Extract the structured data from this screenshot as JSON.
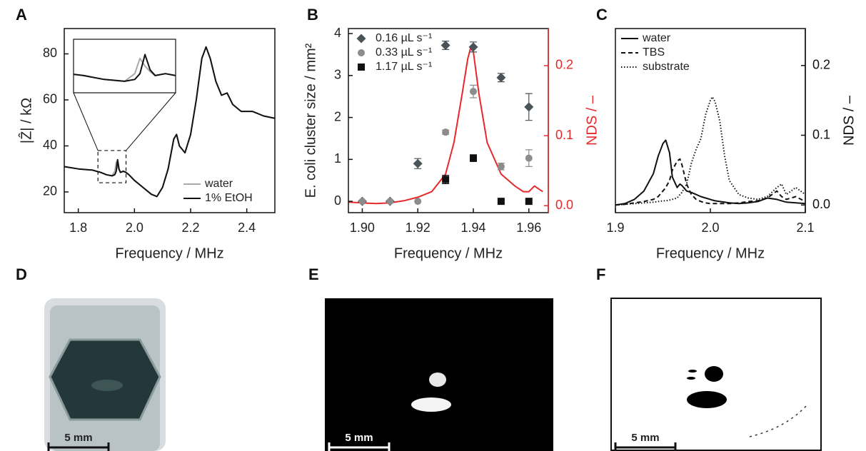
{
  "chart_data": [
    {
      "type": "line",
      "panel": "A",
      "xlabel": "Frequency / MHz",
      "ylabel": "|Ẑ| / kΩ",
      "x": [
        1.75,
        1.8,
        1.85,
        1.88,
        1.9,
        1.92,
        1.93,
        1.935,
        1.94,
        1.945,
        1.95,
        1.96,
        1.97,
        1.98,
        2.0,
        2.03,
        2.06,
        2.08,
        2.1,
        2.12,
        2.14,
        2.15,
        2.16,
        2.18,
        2.2,
        2.22,
        2.24,
        2.255,
        2.27,
        2.29,
        2.31,
        2.33,
        2.35,
        2.38,
        2.42,
        2.46,
        2.5
      ],
      "series": [
        {
          "name": "water",
          "color": "#aaaaaa",
          "values": [
            31,
            30,
            29.5,
            28.5,
            27.5,
            27,
            29,
            33,
            31,
            29.5,
            28.5,
            29,
            28.5,
            27.5,
            25,
            22,
            19,
            18,
            22,
            30,
            43,
            45,
            40,
            37,
            45,
            60,
            78,
            83,
            78,
            68,
            62,
            63,
            58,
            55,
            55,
            53,
            52
          ]
        },
        {
          "name": "1% EtOH",
          "color": "#111111",
          "values": [
            31,
            30,
            29.5,
            28.5,
            27.5,
            27,
            27.5,
            29,
            34,
            30,
            28.5,
            29,
            28.5,
            27.5,
            25,
            22,
            19,
            18,
            22,
            30,
            43,
            45,
            40,
            37,
            45,
            60,
            78,
            83,
            78,
            68,
            62,
            63,
            58,
            55,
            55,
            53,
            52
          ]
        }
      ],
      "xlim": [
        1.75,
        2.5
      ],
      "xticks": [
        1.8,
        {
          "value": 2,
          "label": "2.0"
        },
        2.2,
        2.4
      ],
      "ylim": [
        11,
        91
      ],
      "yticks": [
        20,
        40,
        60,
        80
      ],
      "inset": {
        "xlim": [
          1.87,
          1.97
        ],
        "ylim": [
          24,
          38
        ]
      },
      "legend": "lower right"
    },
    {
      "type": "scatter",
      "panel": "B",
      "xlabel": "Frequency / MHz",
      "ylabel": "E. coli cluster size / mm²",
      "y2label": "NDS / –",
      "y2_color": "#e8282b",
      "series": [
        {
          "axis": "y2",
          "color": "#e8282b",
          "x": [
            1.895,
            1.9,
            1.905,
            1.91,
            1.915,
            1.92,
            1.925,
            1.93,
            1.933,
            1.936,
            1.938,
            1.939,
            1.94,
            1.942,
            1.945,
            1.95,
            1.955,
            1.958,
            1.96,
            1.962,
            1.965
          ],
          "values": [
            0.005,
            0.004,
            0.003,
            0.004,
            0.007,
            0.012,
            0.02,
            0.045,
            0.09,
            0.16,
            0.21,
            0.225,
            0.22,
            0.16,
            0.09,
            0.045,
            0.028,
            0.02,
            0.02,
            0.028,
            0.02
          ]
        },
        {
          "name": "0.16 µL s⁻¹",
          "color": "#4a5358",
          "marker": "diamond",
          "x": [
            1.9,
            1.91,
            1.92,
            1.93,
            1.94,
            1.95,
            1.96
          ],
          "values": [
            0,
            0,
            0.9,
            3.72,
            3.68,
            2.95,
            2.25
          ],
          "errors": [
            null,
            null,
            0.12,
            0.1,
            0.12,
            0.1,
            0.32
          ]
        },
        {
          "name": "0.33 µL s⁻¹",
          "color": "#8c8c8c",
          "marker": "circle",
          "x": [
            1.9,
            1.91,
            1.92,
            1.93,
            1.94,
            1.95,
            1.96
          ],
          "values": [
            0,
            0,
            0,
            1.65,
            2.62,
            0.83,
            1.03
          ],
          "errors": [
            null,
            null,
            null,
            0.05,
            0.15,
            0.08,
            0.2
          ]
        },
        {
          "name": "1.17 µL s⁻¹",
          "color": "#111111",
          "marker": "square",
          "x": [
            1.93,
            1.94,
            1.95,
            1.96
          ],
          "values": [
            0.52,
            1.03,
            0,
            0
          ],
          "errors": [
            0.1,
            0.08,
            null,
            null
          ]
        }
      ],
      "xlim": [
        1.895,
        1.967
      ],
      "xticks": [
        {
          "value": 1.9,
          "label": "1.90"
        },
        1.92,
        1.94,
        1.96
      ],
      "ylim": [
        -0.27,
        4.12
      ],
      "yticks": [
        0,
        1,
        2,
        3,
        4
      ],
      "y2lim": [
        -0.01,
        0.253
      ],
      "y2ticks": [
        {
          "value": 0,
          "label": "0.0"
        },
        0.1,
        0.2
      ],
      "legend": "upper left"
    },
    {
      "type": "line",
      "panel": "C",
      "xlabel": "Frequency / MHz",
      "y2label": "NDS / –",
      "x": [
        1.9,
        1.91,
        1.92,
        1.93,
        1.94,
        1.945,
        1.95,
        1.953,
        1.957,
        1.96,
        1.965,
        1.968,
        1.97,
        1.975,
        1.98,
        1.985,
        1.99,
        1.995,
        2.0,
        2.002,
        2.005,
        2.01,
        2.015,
        2.02,
        2.03,
        2.04,
        2.05,
        2.06,
        2.07,
        2.075,
        2.08,
        2.09,
        2.1
      ],
      "series": [
        {
          "name": "water",
          "color": "#111111",
          "dash": "solid",
          "axis": "y2",
          "values": [
            0.0,
            0.002,
            0.008,
            0.02,
            0.045,
            0.07,
            0.088,
            0.093,
            0.075,
            0.04,
            0.025,
            0.03,
            0.028,
            0.02,
            0.018,
            0.015,
            0.012,
            0.01,
            0.008,
            0.007,
            0.006,
            0.005,
            0.004,
            0.003,
            0.002,
            0.003,
            0.005,
            0.01,
            0.008,
            0.006,
            0.004,
            0.003,
            0.002
          ]
        },
        {
          "name": "TBS",
          "color": "#111111",
          "dash": "dashed",
          "axis": "y2",
          "values": [
            0.0,
            0.001,
            0.003,
            0.005,
            0.008,
            0.012,
            0.02,
            0.025,
            0.035,
            0.05,
            0.063,
            0.066,
            0.058,
            0.03,
            0.015,
            0.008,
            0.005,
            0.003,
            0.002,
            0.002,
            0.002,
            0.002,
            0.002,
            0.002,
            0.003,
            0.005,
            0.006,
            0.01,
            0.02,
            0.012,
            0.008,
            0.012,
            0.005
          ]
        },
        {
          "name": "substrate",
          "color": "#111111",
          "dash": "dotted",
          "axis": "y2",
          "values": [
            0.0,
            0.001,
            0.002,
            0.003,
            0.004,
            0.005,
            0.006,
            0.006,
            0.007,
            0.008,
            0.01,
            0.015,
            0.018,
            0.03,
            0.06,
            0.08,
            0.095,
            0.13,
            0.15,
            0.155,
            0.148,
            0.12,
            0.07,
            0.035,
            0.015,
            0.01,
            0.008,
            0.012,
            0.025,
            0.03,
            0.015,
            0.025,
            0.015
          ]
        }
      ],
      "xlim": [
        1.9,
        2.1
      ],
      "xticks": [
        1.9,
        {
          "value": 2,
          "label": "2.0"
        },
        2.1
      ],
      "y2lim": [
        -0.011,
        0.253
      ],
      "y2ticks": [
        {
          "value": 0,
          "label": "0.0"
        },
        0.1,
        0.2
      ],
      "legend": "upper left"
    }
  ],
  "panels": [
    {
      "label": "D",
      "scale_bar": "5 mm"
    },
    {
      "label": "E",
      "scale_bar": "5 mm"
    },
    {
      "label": "F",
      "scale_bar": "5 mm"
    }
  ]
}
